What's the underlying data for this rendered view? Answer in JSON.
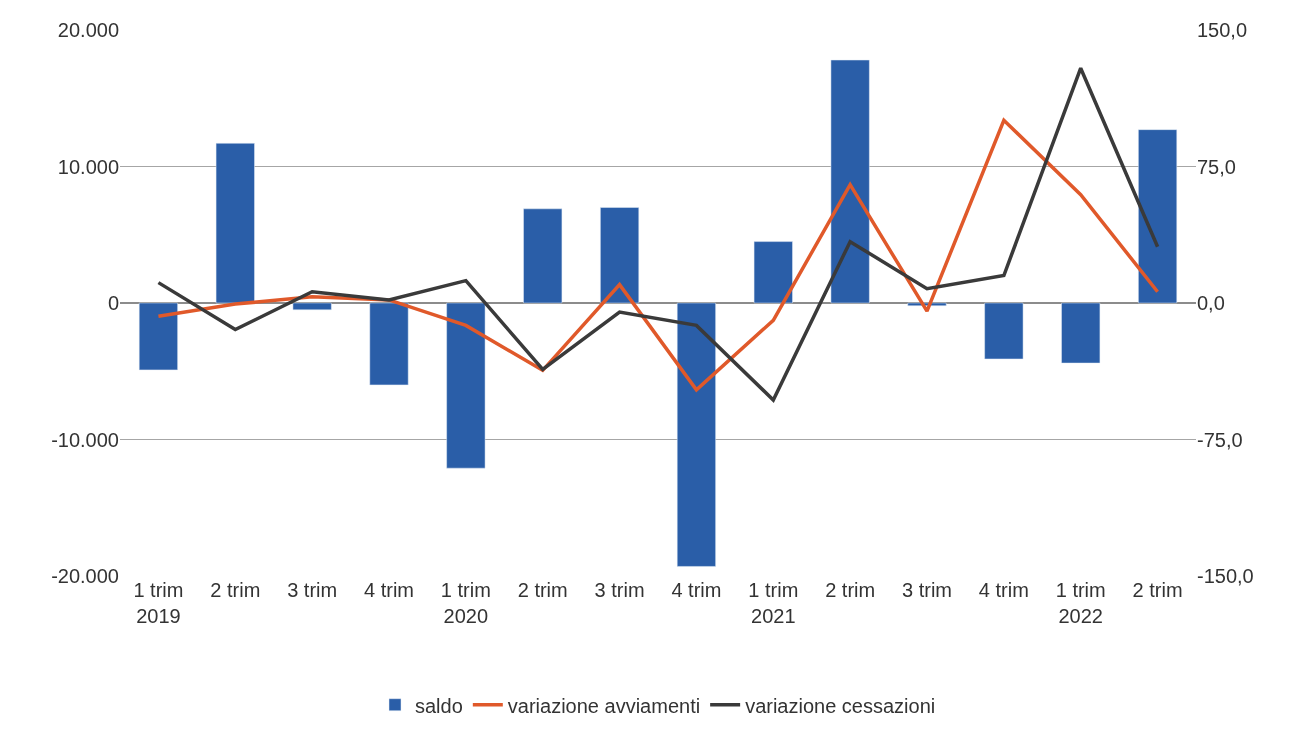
{
  "chart_data": {
    "type": "bar",
    "categories": [
      "1 trim\n2019",
      "2 trim",
      "3 trim",
      "4 trim",
      "1 trim\n2020",
      "2 trim",
      "3 trim",
      "4 trim",
      "1 trim\n2021",
      "2 trim",
      "3 trim",
      "4 trim",
      "1 trim\n2022",
      "2 trim"
    ],
    "series": [
      {
        "name": "saldo",
        "color": "#2a5ea8",
        "values": [
          -4900,
          11700,
          -500,
          -6000,
          -12100,
          6900,
          7000,
          -19300,
          4500,
          17800,
          -200,
          -4100,
          -4400,
          12700
        ]
      },
      {
        "name": "variazione avviamenti",
        "type": "line",
        "axis": "y2",
        "color": "#e0592a",
        "values": [
          -7.3,
          -0.6,
          3.4,
          1.7,
          -12.3,
          -37,
          10.1,
          -47.7,
          -9.5,
          65,
          -4.5,
          100.4,
          59.5,
          6.2
        ]
      },
      {
        "name": "variazione cessazioni",
        "type": "line",
        "axis": "y2",
        "color": "#3a3a3a",
        "values": [
          11.2,
          -14.6,
          6.2,
          1.7,
          12.3,
          -36.5,
          -5,
          -12.3,
          -53.3,
          33.7,
          7.9,
          15.1,
          129,
          30.9
        ]
      }
    ],
    "ylim": [
      -20000,
      20000
    ],
    "yticks": [
      {
        "value": -20000,
        "label": "-20.000"
      },
      {
        "value": -10000,
        "label": "-10.000"
      },
      0,
      {
        "value": 10000,
        "label": "10.000"
      },
      {
        "value": 20000,
        "label": "20.000"
      }
    ],
    "y2lim": [
      -150,
      150
    ],
    "y2ticks": [
      {
        "value": -150,
        "label": "-150,0"
      },
      {
        "value": -75,
        "label": "-75,0"
      },
      {
        "value": 0,
        "label": "0,0"
      },
      {
        "value": 75,
        "label": "75,0"
      },
      {
        "value": 150,
        "label": "150,0"
      }
    ],
    "grid": "y",
    "legend": "bottom",
    "marker": "none",
    "line_style": "solid"
  }
}
